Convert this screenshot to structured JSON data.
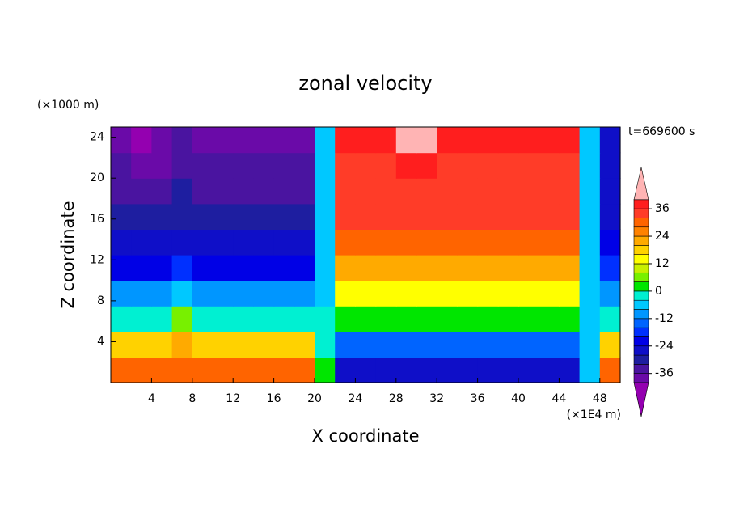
{
  "chart_data": {
    "type": "contour",
    "title": "zonal velocity",
    "x_label": "X coordinate",
    "y_label": "Z coordinate",
    "x_unit": "(×1E4 m)",
    "y_unit": "(×1000 m)",
    "time_label": "t=669600 s",
    "xlim": [
      0,
      50
    ],
    "ylim": [
      0,
      25
    ],
    "xticks": [
      4,
      8,
      12,
      16,
      20,
      24,
      28,
      32,
      36,
      40,
      44,
      48
    ],
    "yticks": [
      4,
      8,
      12,
      16,
      20,
      24
    ],
    "x": [
      1,
      3,
      5,
      7,
      9,
      11,
      13,
      15,
      17,
      19,
      21,
      23,
      25,
      27,
      29,
      31,
      33,
      35,
      37,
      39,
      41,
      43,
      45,
      47,
      49
    ],
    "z": [
      1.25,
      3.75,
      6.25,
      8.75,
      11.25,
      13.75,
      16.25,
      18.75,
      21.25,
      23.75
    ],
    "values": [
      [
        30,
        30,
        30,
        30,
        30,
        30,
        30,
        30,
        30,
        30,
        0,
        -28,
        -28,
        -28,
        -28,
        -28,
        -28,
        -28,
        -28,
        -28,
        -28,
        -28,
        -28,
        -8,
        28
      ],
      [
        18,
        18,
        18,
        20,
        18,
        18,
        18,
        18,
        18,
        18,
        -4,
        -16,
        -16,
        -16,
        -16,
        -16,
        -16,
        -16,
        -16,
        -16,
        -16,
        -16,
        -16,
        -8,
        16
      ],
      [
        -2,
        -2,
        -2,
        4,
        -2,
        -2,
        -2,
        -2,
        -2,
        -2,
        -4,
        2,
        2,
        2,
        2,
        2,
        2,
        2,
        2,
        2,
        2,
        2,
        2,
        -8,
        -2
      ],
      [
        -12,
        -12,
        -12,
        -6,
        -12,
        -12,
        -12,
        -12,
        -12,
        -12,
        -8,
        12,
        12,
        12,
        12,
        12,
        12,
        12,
        12,
        12,
        12,
        12,
        12,
        -8,
        -12
      ],
      [
        -22,
        -22,
        -22,
        -18,
        -22,
        -22,
        -22,
        -22,
        -22,
        -22,
        -8,
        22,
        22,
        22,
        22,
        22,
        22,
        22,
        22,
        22,
        22,
        22,
        22,
        -8,
        -20
      ],
      [
        -28,
        -28,
        -28,
        -26,
        -28,
        -28,
        -28,
        -28,
        -28,
        -28,
        -8,
        28,
        28,
        28,
        28,
        28,
        28,
        28,
        28,
        28,
        28,
        28,
        28,
        -8,
        -24
      ],
      [
        -32,
        -32,
        -32,
        -30,
        -32,
        -32,
        -32,
        -32,
        -32,
        -32,
        -8,
        32,
        32,
        32,
        32,
        32,
        32,
        32,
        32,
        32,
        32,
        32,
        32,
        -8,
        -26
      ],
      [
        -34,
        -34,
        -34,
        -32,
        -34,
        -34,
        -34,
        -34,
        -34,
        -34,
        -8,
        34,
        34,
        34,
        34,
        34,
        34,
        34,
        34,
        34,
        34,
        34,
        34,
        -8,
        -28
      ],
      [
        -36,
        -38,
        -38,
        -34,
        -36,
        -36,
        -36,
        -36,
        -36,
        -36,
        -8,
        35,
        35,
        35,
        38,
        38,
        35,
        35,
        35,
        35,
        35,
        35,
        35,
        -8,
        -28
      ],
      [
        -37,
        -41,
        -38,
        -35,
        -37,
        -37,
        -37,
        -37,
        -38,
        -38,
        -8,
        36,
        36,
        36,
        42,
        42,
        36,
        36,
        36,
        36,
        36,
        36,
        36,
        -8,
        -28
      ]
    ],
    "colorbar": {
      "levels": [
        -40,
        -36,
        -32,
        -28,
        -24,
        -20,
        -16,
        -12,
        -8,
        -4,
        0,
        4,
        8,
        12,
        16,
        20,
        24,
        28,
        32,
        36,
        40
      ],
      "colors": [
        "#6a0aa8",
        "#4a14a0",
        "#1e1ea0",
        "#0f0fc8",
        "#0000e6",
        "#0030ff",
        "#0064ff",
        "#0096ff",
        "#00c8ff",
        "#00f0d2",
        "#00e600",
        "#78f000",
        "#c8f000",
        "#ffff00",
        "#ffd200",
        "#ffaa00",
        "#ff8200",
        "#ff6400",
        "#ff3c28",
        "#ff1e1e"
      ],
      "under_color": "#9400b0",
      "over_color": "#ffb4b4",
      "ticks": [
        -36,
        -24,
        -12,
        0,
        12,
        24,
        36
      ]
    }
  }
}
